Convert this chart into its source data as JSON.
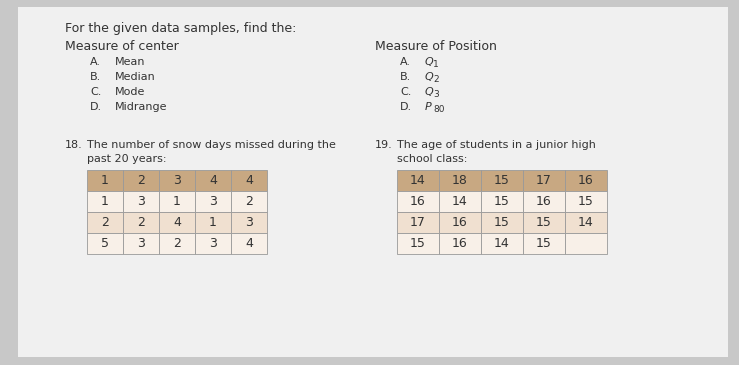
{
  "bg_color": "#c8c8c8",
  "paper_color": "#f0f0f0",
  "header_text": "For the given data samples, find the:",
  "left_header": "Measure of center",
  "right_header": "Measure of Position",
  "left_items": [
    [
      "A.",
      "Mean"
    ],
    [
      "B.",
      "Median"
    ],
    [
      "C.",
      "Mode"
    ],
    [
      "D.",
      "Midrange"
    ]
  ],
  "right_items_letter": [
    "A.",
    "B.",
    "C.",
    "D."
  ],
  "right_items_main": [
    "Q",
    "Q",
    "Q",
    "P"
  ],
  "right_items_sub": [
    "1",
    "2",
    "3",
    "80"
  ],
  "q18_label": "18.",
  "q18_text1": "The number of snow days missed during the",
  "q18_text2": "past 20 years:",
  "q18_data": [
    [
      1,
      2,
      3,
      4,
      4
    ],
    [
      1,
      3,
      1,
      3,
      2
    ],
    [
      2,
      2,
      4,
      1,
      3
    ],
    [
      5,
      3,
      2,
      3,
      4
    ]
  ],
  "q19_label": "19.",
  "q19_text1": "The age of students in a junior high",
  "q19_text2": "school class:",
  "q19_data": [
    [
      14,
      18,
      15,
      17,
      16
    ],
    [
      16,
      14,
      15,
      16,
      15
    ],
    [
      17,
      16,
      15,
      15,
      14
    ],
    [
      15,
      16,
      14,
      15,
      null
    ]
  ],
  "table_header_color": "#c8a882",
  "table_row1_color": "#f0e0d0",
  "table_row2_color": "#f8f0e8",
  "text_color": "#333333",
  "font_size": 9.0,
  "font_size_small": 8.0,
  "font_size_table": 9.0,
  "font_size_sub": 6.5
}
